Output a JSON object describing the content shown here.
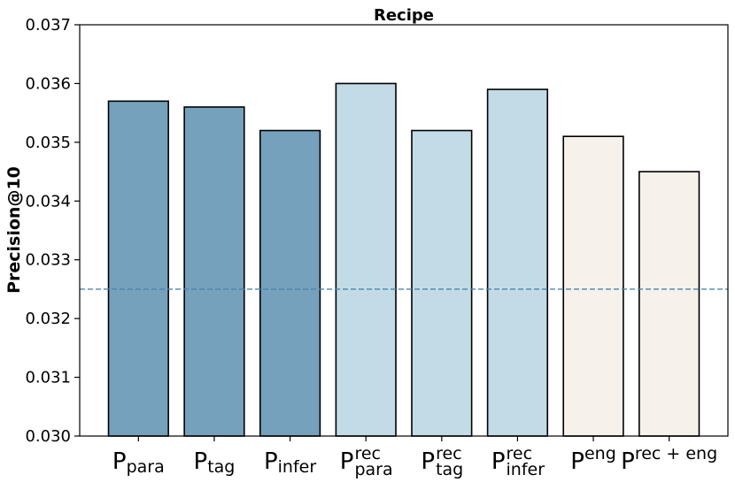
{
  "chart_data": {
    "type": "bar",
    "title": "Recipe",
    "xlabel": "",
    "ylabel": "Precision@10",
    "ylim": [
      0.03,
      0.037
    ],
    "yticks": [
      "0.030",
      "0.031",
      "0.032",
      "0.033",
      "0.034",
      "0.035",
      "0.036",
      "0.037"
    ],
    "grid": false,
    "categories": [
      {
        "base": "P",
        "sub": "para",
        "sup": ""
      },
      {
        "base": "P",
        "sub": "tag",
        "sup": ""
      },
      {
        "base": "P",
        "sub": "infer",
        "sup": ""
      },
      {
        "base": "P",
        "sub": "para",
        "sup": "rec"
      },
      {
        "base": "P",
        "sub": "tag",
        "sup": "rec"
      },
      {
        "base": "P",
        "sub": "infer",
        "sup": "rec"
      },
      {
        "base": "P",
        "sub": "",
        "sup": "eng"
      },
      {
        "base": "P",
        "sub": "",
        "sup": "rec + eng"
      }
    ],
    "values": [
      0.0357,
      0.0356,
      0.0352,
      0.036,
      0.0352,
      0.0359,
      0.0351,
      0.0345
    ],
    "bar_colors": [
      "#75a1bc",
      "#75a1bc",
      "#75a1bc",
      "#c2dbe6",
      "#c2dbe6",
      "#c2dbe6",
      "#f6f1ea",
      "#f6f1ea"
    ],
    "baseline": 0.0325,
    "baseline_color": "#4a86b0",
    "bar_edge_color": "#000000"
  }
}
